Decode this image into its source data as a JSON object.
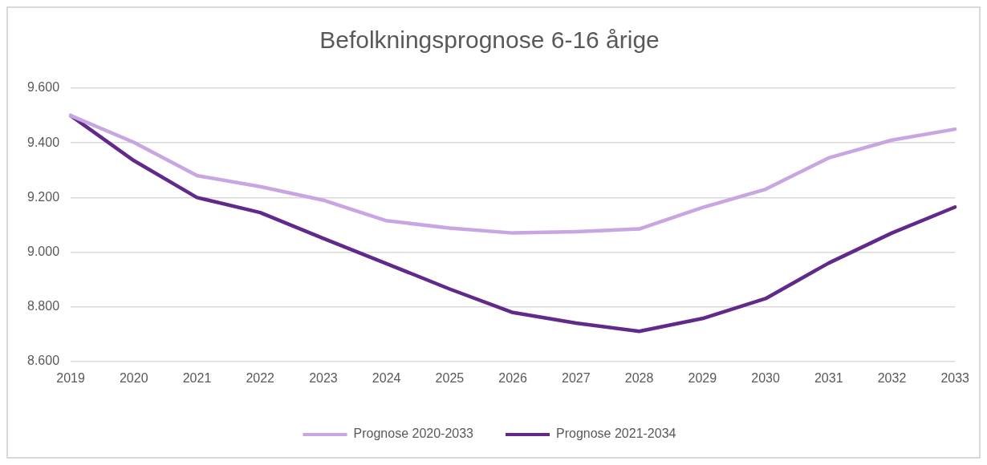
{
  "chart_data": {
    "type": "line",
    "title": "Befolkningsprognose 6-16 årige",
    "categories": [
      "2019",
      "2020",
      "2021",
      "2022",
      "2023",
      "2024",
      "2025",
      "2026",
      "2027",
      "2028",
      "2029",
      "2030",
      "2031",
      "2032",
      "2033"
    ],
    "series": [
      {
        "name": "Prognose 2020-2033",
        "color": "#c8a6e2",
        "values": [
          9500,
          9402,
          9280,
          9240,
          9190,
          9115,
          9088,
          9070,
          9075,
          9085,
          9163,
          9230,
          9345,
          9410,
          9450
        ]
      },
      {
        "name": "Prognose 2021-2034",
        "color": "#612a8a",
        "values": [
          9500,
          9335,
          9200,
          9145,
          9050,
          8958,
          8865,
          8779,
          8740,
          8710,
          8757,
          8830,
          8960,
          9070,
          9165
        ]
      }
    ],
    "ylim": [
      8600,
      9600
    ],
    "yticks": [
      {
        "value": 8600,
        "label": "8.600"
      },
      {
        "value": 8800,
        "label": "8.800"
      },
      {
        "value": 9000,
        "label": "9.000"
      },
      {
        "value": 9200,
        "label": "9.200"
      },
      {
        "value": 9400,
        "label": "9.400"
      },
      {
        "value": 9600,
        "label": "9.600"
      }
    ],
    "grid": "y",
    "legend": "bottom",
    "marker": "none",
    "line_style": "solid"
  }
}
